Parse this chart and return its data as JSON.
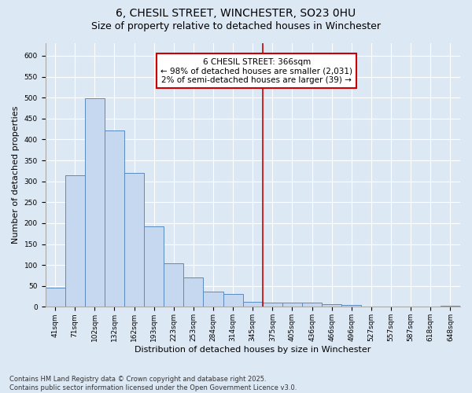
{
  "title_line1": "6, CHESIL STREET, WINCHESTER, SO23 0HU",
  "title_line2": "Size of property relative to detached houses in Winchester",
  "xlabel": "Distribution of detached houses by size in Winchester",
  "ylabel": "Number of detached properties",
  "categories": [
    "41sqm",
    "71sqm",
    "102sqm",
    "132sqm",
    "162sqm",
    "193sqm",
    "223sqm",
    "253sqm",
    "284sqm",
    "314sqm",
    "345sqm",
    "375sqm",
    "405sqm",
    "436sqm",
    "466sqm",
    "496sqm",
    "527sqm",
    "557sqm",
    "587sqm",
    "618sqm",
    "648sqm"
  ],
  "values": [
    46,
    314,
    498,
    422,
    320,
    193,
    105,
    70,
    37,
    31,
    12,
    10,
    11,
    10,
    6,
    4,
    1,
    0,
    0,
    1,
    2
  ],
  "bar_color": "#c5d8f0",
  "bar_edge_color": "#5a8abf",
  "vline_x_index": 11,
  "vline_color": "#cc0000",
  "annotation_title": "6 CHESIL STREET: 366sqm",
  "annotation_line1": "← 98% of detached houses are smaller (2,031)",
  "annotation_line2": "2% of semi-detached houses are larger (39) →",
  "annotation_box_color": "#cc0000",
  "annotation_text_color": "#000000",
  "ylim": [
    0,
    630
  ],
  "yticks": [
    0,
    50,
    100,
    150,
    200,
    250,
    300,
    350,
    400,
    450,
    500,
    550,
    600
  ],
  "background_color": "#dde8f5",
  "plot_bg_color": "#dde8f5",
  "footer_line1": "Contains HM Land Registry data © Crown copyright and database right 2025.",
  "footer_line2": "Contains public sector information licensed under the Open Government Licence v3.0.",
  "title_fontsize": 10,
  "subtitle_fontsize": 9,
  "tick_fontsize": 6.5,
  "label_fontsize": 8,
  "annotation_fontsize": 7.5,
  "footer_fontsize": 6
}
